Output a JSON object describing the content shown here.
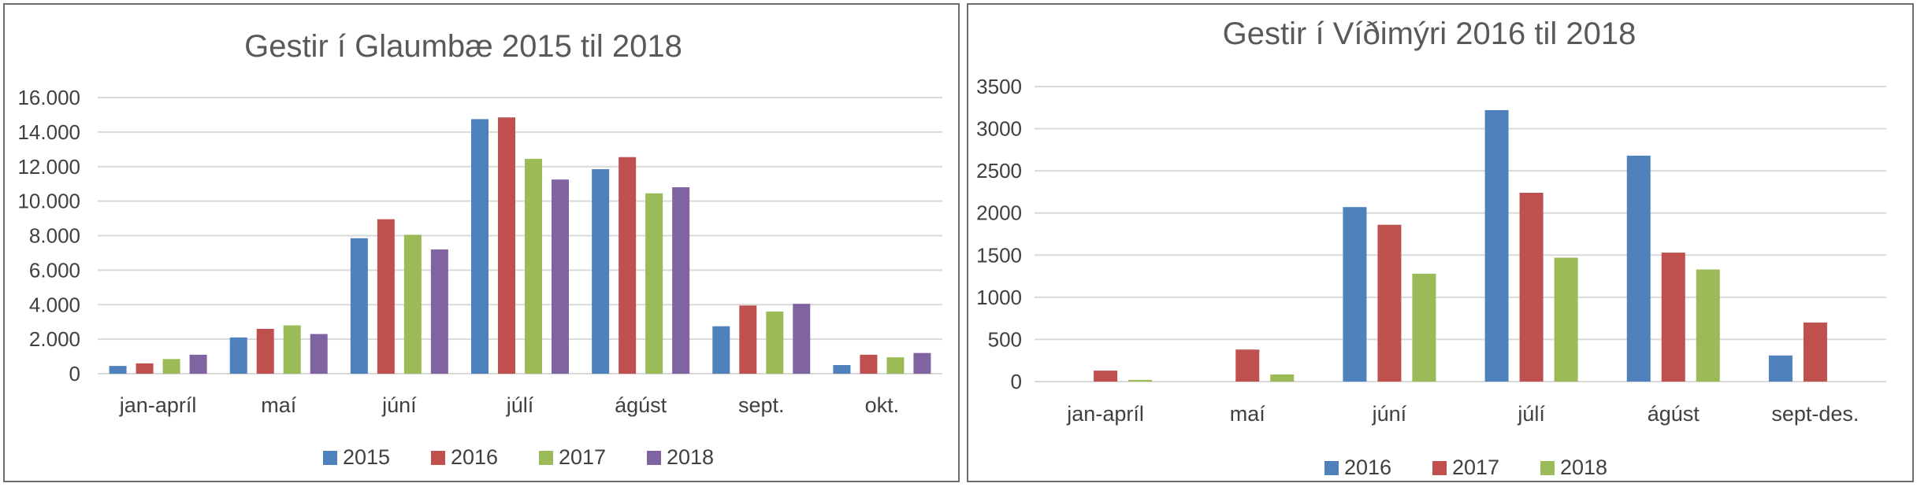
{
  "chart_data": [
    {
      "type": "bar",
      "title": "Gestir í Glaumbæ 2015 til 2018",
      "categories": [
        "jan-apríl",
        "maí",
        "júní",
        "júlí",
        "ágúst",
        "sept.",
        "okt."
      ],
      "series": [
        {
          "name": "2015",
          "color": "#4f81bd",
          "values": [
            450,
            2100,
            7850,
            14750,
            11850,
            2750,
            500
          ]
        },
        {
          "name": "2016",
          "color": "#c0504d",
          "values": [
            600,
            2600,
            8950,
            14850,
            12550,
            3950,
            1100
          ]
        },
        {
          "name": "2017",
          "color": "#9bbb59",
          "values": [
            850,
            2800,
            8050,
            12450,
            10450,
            3600,
            950
          ]
        },
        {
          "name": "2018",
          "color": "#8064a2",
          "values": [
            1100,
            2300,
            7200,
            11250,
            10800,
            4050,
            1200
          ]
        }
      ],
      "ylim": [
        0,
        16000
      ],
      "yticks": [
        "0",
        "2.000",
        "4.000",
        "6.000",
        "8.000",
        "10.000",
        "12.000",
        "14.000",
        "16.000"
      ],
      "grid": true,
      "legend": "bottom"
    },
    {
      "type": "bar",
      "title": "Gestir í Víðimýri 2016 til 2018",
      "categories": [
        "jan-apríl",
        "maí",
        "júní",
        "júlí",
        "ágúst",
        "sept-des."
      ],
      "series": [
        {
          "name": "2016",
          "color": "#4f81bd",
          "values": [
            0,
            0,
            2070,
            3220,
            2680,
            310
          ]
        },
        {
          "name": "2017",
          "color": "#c0504d",
          "values": [
            130,
            380,
            1860,
            2240,
            1530,
            700
          ]
        },
        {
          "name": "2018",
          "color": "#9bbb59",
          "values": [
            20,
            85,
            1280,
            1470,
            1330,
            0
          ]
        }
      ],
      "ylim": [
        0,
        3500
      ],
      "yticks": [
        "0",
        "500",
        "1000",
        "1500",
        "2000",
        "2500",
        "3000",
        "3500"
      ],
      "grid": true,
      "legend": "bottom"
    }
  ]
}
